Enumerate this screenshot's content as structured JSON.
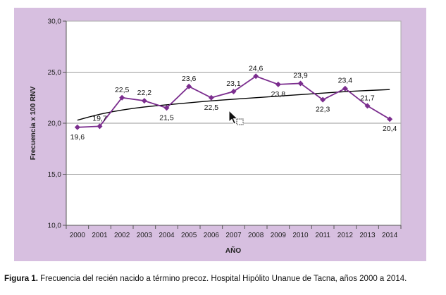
{
  "chart_data": {
    "type": "line",
    "title": "",
    "xlabel": "AÑO",
    "ylabel": "Frecuencia x 100 RNV",
    "categories": [
      "2000",
      "2001",
      "2002",
      "2003",
      "2004",
      "2005",
      "2006",
      "2007",
      "2008",
      "2009",
      "2010",
      "2011",
      "2012",
      "2013",
      "2014"
    ],
    "series": [
      {
        "values": [
          19.6,
          19.7,
          22.5,
          22.2,
          21.5,
          23.6,
          22.5,
          23.1,
          24.6,
          23.8,
          23.9,
          22.3,
          23.4,
          21.7,
          20.4
        ],
        "labels": [
          "19,6",
          "19,7",
          "22,5",
          "22,2",
          "21,5",
          "23,6",
          "22,5",
          "23,1",
          "24,6",
          "23,8",
          "23,9",
          "22,3",
          "23,4",
          "21,7",
          "20,4"
        ],
        "color": "#7b2d8e",
        "marker": "diamond"
      }
    ],
    "trendline": {
      "type": "logarithmic",
      "values": [
        20.3,
        20.9,
        21.3,
        21.6,
        21.8,
        22.0,
        22.2,
        22.35,
        22.5,
        22.65,
        22.8,
        22.95,
        23.1,
        23.2,
        23.3
      ],
      "color": "#000000"
    },
    "ylim": [
      10,
      30
    ],
    "yticks": [
      10,
      15,
      20,
      25,
      30
    ],
    "ytick_labels": [
      "10,0",
      "15,0",
      "20,0",
      "25,0",
      "30,0"
    ],
    "grid": "horizontal",
    "legend": "none",
    "panel_color": "#d7bfe0",
    "plot_color": "#ffffff"
  },
  "caption": {
    "label": "Figura 1.",
    "text": " Frecuencia del recién nacido a término precoz. Hospital Hipólito Unanue de Tacna, años 2000 a 2014."
  },
  "cursor": {
    "icon": "mouse-pointer-icon"
  }
}
